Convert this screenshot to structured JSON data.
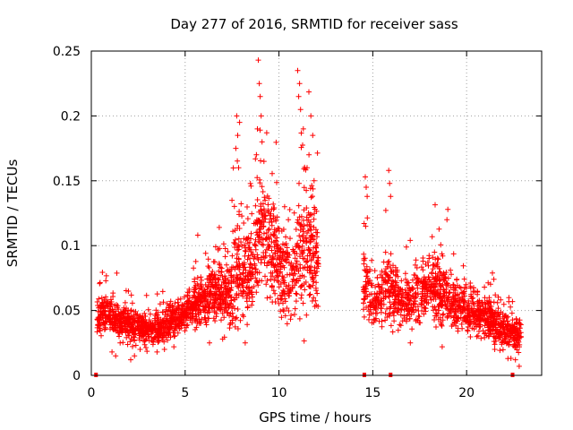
{
  "chart_data": {
    "type": "scatter",
    "title": "Day 277 of 2016, SRMTID for receiver sass",
    "xlabel": "GPS time / hours",
    "ylabel": "SRMTID / TECUs",
    "xlim": [
      0,
      24
    ],
    "ylim": [
      0,
      0.25
    ],
    "x_ticks": [
      0,
      5,
      10,
      15,
      20
    ],
    "x_tick_labels": [
      "0",
      "5",
      "10",
      "15",
      "20"
    ],
    "y_ticks": [
      0,
      0.05,
      0.1,
      0.15,
      0.2,
      0.25
    ],
    "y_tick_labels": [
      "0",
      "0.05",
      "0.1",
      "0.15",
      "0.2",
      "0.25"
    ],
    "grid": true,
    "marker": "+",
    "color": "#ff0000",
    "zero_markers_x": [
      0.25,
      14.55,
      15.95,
      22.45
    ],
    "profile": [
      [
        0.3,
        0.045,
        0.012
      ],
      [
        1.0,
        0.048,
        0.012
      ],
      [
        1.5,
        0.042,
        0.012
      ],
      [
        2.0,
        0.037,
        0.011
      ],
      [
        3.0,
        0.035,
        0.01
      ],
      [
        4.0,
        0.038,
        0.01
      ],
      [
        4.8,
        0.045,
        0.012
      ],
      [
        5.5,
        0.055,
        0.015
      ],
      [
        6.5,
        0.065,
        0.02
      ],
      [
        7.3,
        0.06,
        0.02
      ],
      [
        7.8,
        0.085,
        0.04
      ],
      [
        8.5,
        0.08,
        0.03
      ],
      [
        9.0,
        0.12,
        0.045
      ],
      [
        9.6,
        0.09,
        0.035
      ],
      [
        10.2,
        0.08,
        0.03
      ],
      [
        10.8,
        0.075,
        0.03
      ],
      [
        11.3,
        0.1,
        0.045
      ],
      [
        11.8,
        0.1,
        0.045
      ],
      [
        12.1,
        0.085,
        0.03
      ],
      [
        14.5,
        0.07,
        0.025
      ],
      [
        15.0,
        0.055,
        0.015
      ],
      [
        15.8,
        0.07,
        0.025
      ],
      [
        16.5,
        0.055,
        0.015
      ],
      [
        17.3,
        0.06,
        0.018
      ],
      [
        18.0,
        0.07,
        0.02
      ],
      [
        19.0,
        0.06,
        0.02
      ],
      [
        20.0,
        0.05,
        0.015
      ],
      [
        21.0,
        0.045,
        0.015
      ],
      [
        22.0,
        0.035,
        0.012
      ],
      [
        22.8,
        0.03,
        0.012
      ]
    ],
    "segments": [
      {
        "start": 0.3,
        "end": 12.1,
        "count": 1900
      },
      {
        "start": 14.5,
        "end": 22.9,
        "count": 1200
      }
    ],
    "peaks": [
      [
        7.75,
        0.2
      ],
      [
        7.9,
        0.195
      ],
      [
        7.8,
        0.185
      ],
      [
        7.7,
        0.175
      ],
      [
        7.85,
        0.16
      ],
      [
        8.9,
        0.243
      ],
      [
        8.95,
        0.225
      ],
      [
        9.0,
        0.215
      ],
      [
        9.05,
        0.2
      ],
      [
        8.85,
        0.19
      ],
      [
        9.1,
        0.18
      ],
      [
        8.8,
        0.17
      ],
      [
        9.2,
        0.165
      ],
      [
        11.0,
        0.235
      ],
      [
        11.1,
        0.225
      ],
      [
        11.05,
        0.215
      ],
      [
        11.15,
        0.205
      ],
      [
        11.3,
        0.19
      ],
      [
        11.7,
        0.2
      ],
      [
        11.8,
        0.185
      ],
      [
        11.6,
        0.17
      ],
      [
        11.5,
        0.16
      ],
      [
        14.6,
        0.153
      ],
      [
        14.65,
        0.145
      ],
      [
        14.7,
        0.138
      ],
      [
        15.85,
        0.158
      ],
      [
        15.9,
        0.148
      ],
      [
        15.95,
        0.138
      ],
      [
        19.0,
        0.128
      ],
      [
        18.95,
        0.12
      ],
      [
        12.05,
        0.11
      ],
      [
        10.3,
        0.13
      ],
      [
        10.5,
        0.12
      ]
    ],
    "lows": [
      [
        1.1,
        0.018
      ],
      [
        1.3,
        0.015
      ],
      [
        2.3,
        0.015
      ],
      [
        2.6,
        0.02
      ],
      [
        2.1,
        0.012
      ],
      [
        3.5,
        0.018
      ],
      [
        3.9,
        0.02
      ],
      [
        4.4,
        0.022
      ],
      [
        6.3,
        0.025
      ],
      [
        7.0,
        0.028
      ],
      [
        8.2,
        0.025
      ],
      [
        18.7,
        0.022
      ],
      [
        17.0,
        0.025
      ],
      [
        21.5,
        0.02
      ],
      [
        22.2,
        0.013
      ],
      [
        22.8,
        0.007
      ],
      [
        22.6,
        0.012
      ]
    ]
  }
}
